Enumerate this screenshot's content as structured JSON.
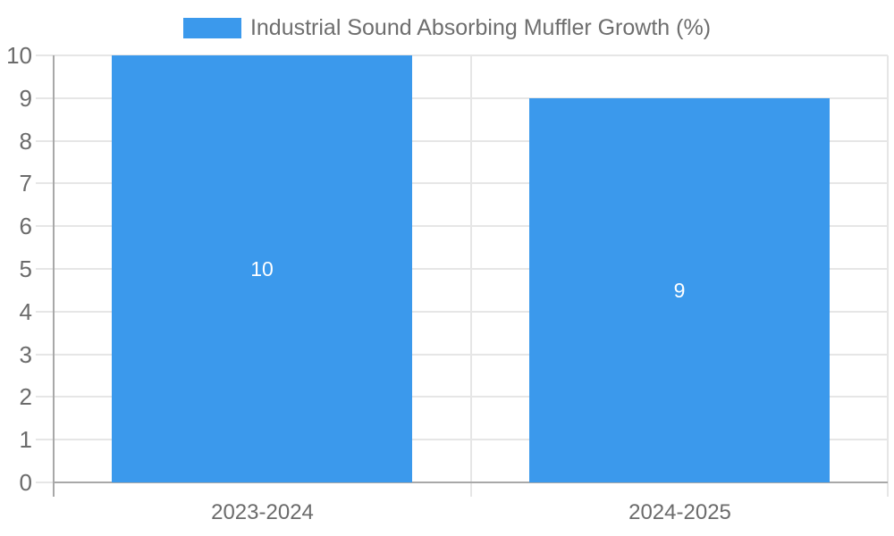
{
  "chart_data": {
    "type": "bar",
    "title": "Industrial Sound Absorbing Muffler Growth (%)",
    "categories": [
      "2023-2024",
      "2024-2025"
    ],
    "series": [
      {
        "name": "Industrial Sound Absorbing Muffler Growth (%)",
        "values": [
          10,
          9
        ]
      }
    ],
    "bar_value_labels": [
      "10",
      "9"
    ],
    "xlabel": "",
    "ylabel": "",
    "ylim": [
      0,
      10
    ],
    "ytick_step": 1,
    "ytick_labels": [
      "0",
      "1",
      "2",
      "3",
      "4",
      "5",
      "6",
      "7",
      "8",
      "9",
      "10"
    ],
    "grid": true,
    "legend_position": "top-center",
    "colors": {
      "bar": "#3b99ec",
      "gridline": "#e6e6e6",
      "axis_line": "#a8a8a8",
      "y_label_text": "#6b6b6b",
      "x_label_text": "#6b6b6b",
      "legend_text": "#6e6e6e",
      "bar_value_text": "#ffffff",
      "background": "#ffffff"
    }
  }
}
